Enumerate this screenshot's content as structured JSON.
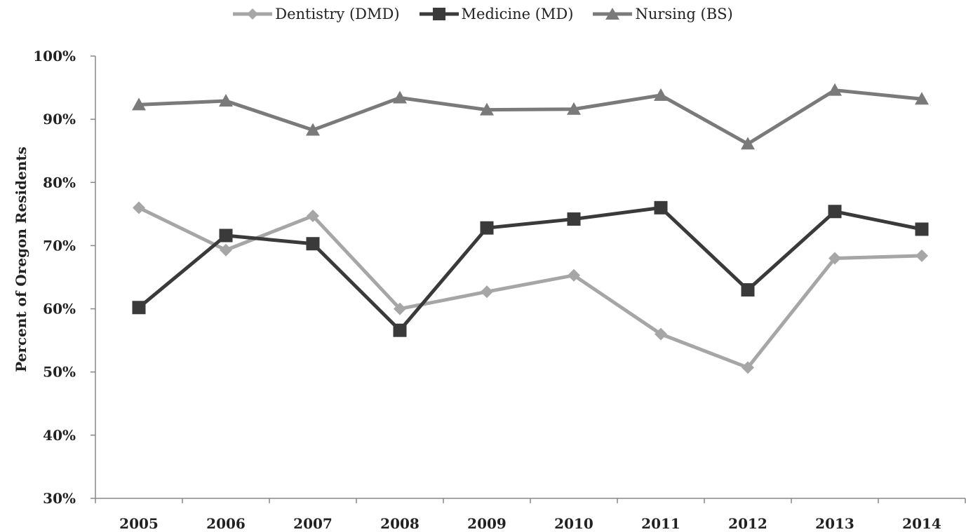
{
  "chart_data": {
    "type": "line",
    "title": "",
    "xlabel": "",
    "ylabel": "Percent of Oregon Residents",
    "categories": [
      "2005",
      "2006",
      "2007",
      "2008",
      "2009",
      "2010",
      "2011",
      "2012",
      "2013",
      "2014"
    ],
    "ylim": [
      30,
      100
    ],
    "yticks": [
      "30%",
      "40%",
      "50%",
      "60%",
      "70%",
      "80%",
      "90%",
      "100%"
    ],
    "ytick_values": [
      30,
      40,
      50,
      60,
      70,
      80,
      90,
      100
    ],
    "grid": false,
    "legend_position": "top-center",
    "series": [
      {
        "name": "Dentistry (DMD)",
        "marker": "diamond",
        "color": "#a6a6a6",
        "values": [
          76.0,
          69.3,
          74.7,
          60.0,
          62.7,
          65.3,
          56.0,
          50.7,
          68.0,
          68.4
        ]
      },
      {
        "name": "Medicine (MD)",
        "marker": "square",
        "color": "#3a3a3a",
        "values": [
          60.2,
          71.6,
          70.3,
          56.6,
          72.8,
          74.2,
          76.0,
          63.0,
          75.4,
          72.6
        ]
      },
      {
        "name": "Nursing (BS)",
        "marker": "triangle",
        "color": "#7a7a7a",
        "values": [
          92.3,
          92.9,
          88.3,
          93.4,
          91.5,
          91.6,
          93.8,
          86.1,
          94.6,
          93.2
        ]
      }
    ]
  }
}
